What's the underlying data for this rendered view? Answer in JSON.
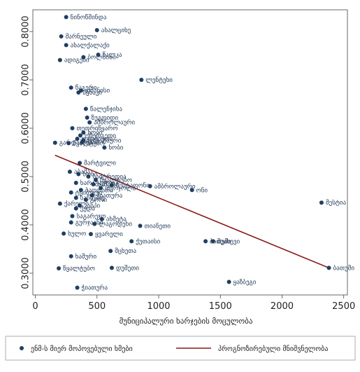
{
  "chart_data": {
    "type": "scatter",
    "title": "",
    "xlabel": "მუნიციპალური ხარჯების მოცულობა",
    "ylabel": "",
    "xlim": [
      -20,
      2530
    ],
    "ylim": [
      0.255,
      0.845
    ],
    "x_ticks": [
      "0",
      "500",
      "1000",
      "1500",
      "2000",
      "2500"
    ],
    "x_tick_values": [
      0,
      500,
      1000,
      1500,
      2000,
      2500
    ],
    "y_ticks": [
      "0.3000",
      "0.4000",
      "0.5000",
      "0.6000",
      "0.7000",
      "0.8000"
    ],
    "y_tick_values": [
      0.3,
      0.4,
      0.5,
      0.6,
      0.7,
      0.8
    ],
    "grid": false,
    "legend_position": "bottom",
    "colors": {
      "points": "#1f3f63",
      "line": "#8b1a1a",
      "labels": "#243b5a"
    },
    "legend": [
      {
        "label": "ენმ-ს მიერ მოპოვებული ხმები",
        "marker": "dot"
      },
      {
        "label": "პროგნოზირებული მნიშვნელობა",
        "marker": "line"
      }
    ],
    "fit_line": {
      "x": [
        160,
        2380
      ],
      "y": [
        0.544,
        0.311
      ]
    },
    "points": [
      {
        "x": 250,
        "y": 0.83,
        "label": "ნინოწმინდა"
      },
      {
        "x": 500,
        "y": 0.803,
        "label": "ახალციხე"
      },
      {
        "x": 210,
        "y": 0.79,
        "label": "მარნეული"
      },
      {
        "x": 250,
        "y": 0.772,
        "label": "ახალქალაქი"
      },
      {
        "x": 510,
        "y": 0.752,
        "label": "წალკა"
      },
      {
        "x": 390,
        "y": 0.747,
        "label": "ბოლნისი"
      },
      {
        "x": 200,
        "y": 0.741,
        "label": "ადიგენი"
      },
      {
        "x": 860,
        "y": 0.7,
        "label": "ლენტეხი"
      },
      {
        "x": 290,
        "y": 0.684,
        "label": "წაგერი"
      },
      {
        "x": 370,
        "y": 0.678,
        "label": "დმანისი"
      },
      {
        "x": 350,
        "y": 0.674,
        "label": "სენაკი"
      },
      {
        "x": 410,
        "y": 0.64,
        "label": "წალენჯიხა"
      },
      {
        "x": 420,
        "y": 0.622,
        "label": "ზუგდიდი"
      },
      {
        "x": 440,
        "y": 0.612,
        "label": "ამბროლაური"
      },
      {
        "x": 300,
        "y": 0.6,
        "label": "თეთრიწყარო"
      },
      {
        "x": 390,
        "y": 0.591,
        "label": "ხობი"
      },
      {
        "x": 365,
        "y": 0.585,
        "label": "ოზურგეთი"
      },
      {
        "x": 340,
        "y": 0.578,
        "label": "ლანჩხუთი"
      },
      {
        "x": 390,
        "y": 0.575,
        "label": "ჩოხატაური"
      },
      {
        "x": 380,
        "y": 0.571,
        "label": "ვანი"
      },
      {
        "x": 160,
        "y": 0.57,
        "label": "გარდაბანი"
      },
      {
        "x": 270,
        "y": 0.569,
        "label": "წყალტუბო"
      },
      {
        "x": 560,
        "y": 0.56,
        "label": "ხობი"
      },
      {
        "x": 360,
        "y": 0.528,
        "label": "მარტვილი"
      },
      {
        "x": 280,
        "y": 0.51,
        "label": "აბაშა"
      },
      {
        "x": 350,
        "y": 0.505,
        "label": "ხონი"
      },
      {
        "x": 430,
        "y": 0.5,
        "label": "სამტრედია"
      },
      {
        "x": 490,
        "y": 0.493,
        "label": "წყალტუბო"
      },
      {
        "x": 330,
        "y": 0.487,
        "label": "ხარაგაული"
      },
      {
        "x": 470,
        "y": 0.484,
        "label": "ხაშური"
      },
      {
        "x": 620,
        "y": 0.482,
        "label": "ზესტაფონი"
      },
      {
        "x": 930,
        "y": 0.48,
        "label": "ამბროლაური"
      },
      {
        "x": 530,
        "y": 0.476,
        "label": "თერჯოლა"
      },
      {
        "x": 370,
        "y": 0.472,
        "label": "ბაღდათი"
      },
      {
        "x": 1270,
        "y": 0.472,
        "label": "ონი"
      },
      {
        "x": 290,
        "y": 0.467,
        "label": "ტყიბული"
      },
      {
        "x": 460,
        "y": 0.461,
        "label": "ჭიათურა"
      },
      {
        "x": 330,
        "y": 0.456,
        "label": "საჩხერე"
      },
      {
        "x": 410,
        "y": 0.452,
        "label": "გორი"
      },
      {
        "x": 2320,
        "y": 0.446,
        "label": "მესტია"
      },
      {
        "x": 200,
        "y": 0.444,
        "label": "ქარელი"
      },
      {
        "x": 360,
        "y": 0.44,
        "label": "კასპი"
      },
      {
        "x": 330,
        "y": 0.434,
        "label": "ქედა"
      },
      {
        "x": 300,
        "y": 0.418,
        "label": "საგარეჯო"
      },
      {
        "x": 540,
        "y": 0.412,
        "label": "ახმეტა"
      },
      {
        "x": 290,
        "y": 0.405,
        "label": "გურჯაანი"
      },
      {
        "x": 480,
        "y": 0.402,
        "label": "ლაგოდეხი"
      },
      {
        "x": 850,
        "y": 0.398,
        "label": "თიანეთი"
      },
      {
        "x": 230,
        "y": 0.382,
        "label": "ხულო"
      },
      {
        "x": 450,
        "y": 0.381,
        "label": "ყვარელი"
      },
      {
        "x": 780,
        "y": 0.366,
        "label": "ქუთაისი"
      },
      {
        "x": 1380,
        "y": 0.366,
        "label": "ბათუმი"
      },
      {
        "x": 1440,
        "y": 0.366,
        "label": "შუახევი"
      },
      {
        "x": 610,
        "y": 0.346,
        "label": "მცხეთა"
      },
      {
        "x": 290,
        "y": 0.335,
        "label": "ხაშური"
      },
      {
        "x": 190,
        "y": 0.31,
        "label": "წყალტუბო"
      },
      {
        "x": 620,
        "y": 0.311,
        "label": "დუშეთი"
      },
      {
        "x": 2380,
        "y": 0.311,
        "label": "ბათუმი"
      },
      {
        "x": 1570,
        "y": 0.282,
        "label": "ყაზბეგი"
      },
      {
        "x": 340,
        "y": 0.27,
        "label": "ჭიათურა"
      }
    ]
  }
}
